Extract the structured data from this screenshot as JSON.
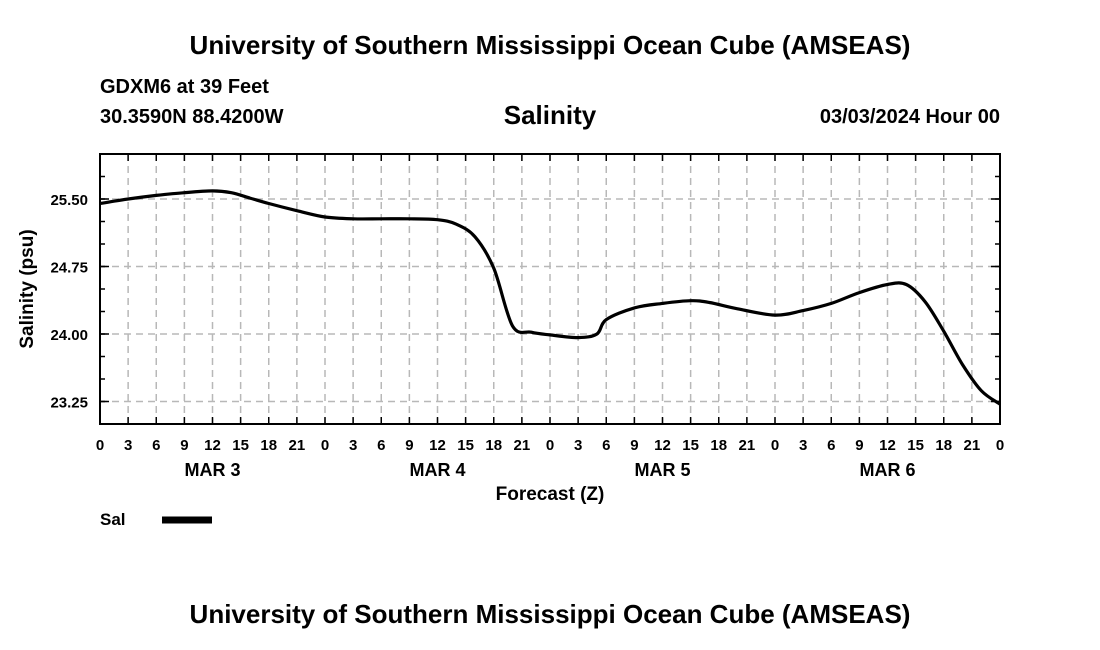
{
  "header": {
    "title": "University of Southern Mississippi Ocean Cube (AMSEAS)",
    "station": "GDXM6 at 39 Feet",
    "coords": "30.3590N  88.4200W",
    "chart_title": "Salinity",
    "datetime": "03/03/2024 Hour 00"
  },
  "footer": {
    "title": "University of Southern Mississippi Ocean Cube (AMSEAS)"
  },
  "chart_data": {
    "type": "line",
    "title": "Salinity",
    "xlabel": "Forecast (Z)",
    "ylabel": "Salinity (psu)",
    "xlim": [
      0,
      96
    ],
    "ylim": [
      23.0,
      26.0
    ],
    "grid": true,
    "x_tick_step_hours": 3,
    "x_tick_labels": [
      "0",
      "3",
      "6",
      "9",
      "12",
      "15",
      "18",
      "21",
      "0",
      "3",
      "6",
      "9",
      "12",
      "15",
      "18",
      "21",
      "0",
      "3",
      "6",
      "9",
      "12",
      "15",
      "18",
      "21",
      "0",
      "3",
      "6",
      "9",
      "12",
      "15",
      "18",
      "21",
      "0"
    ],
    "day_labels": [
      {
        "label": "MAR 3",
        "hour": 12
      },
      {
        "label": "MAR 4",
        "hour": 36
      },
      {
        "label": "MAR 5",
        "hour": 60
      },
      {
        "label": "MAR 6",
        "hour": 84
      }
    ],
    "y_ticks": [
      23.25,
      24.0,
      24.75,
      25.5
    ],
    "y_tick_labels": [
      "23.25",
      "24.00",
      "24.75",
      "25.50"
    ],
    "y_minor_step": 0.25,
    "legend": {
      "label": "Sal",
      "placement": "bottom-left"
    },
    "series": [
      {
        "name": "Sal",
        "color": "#000000",
        "x": [
          0,
          3,
          6,
          9,
          12,
          14,
          16,
          18,
          21,
          24,
          27,
          30,
          33,
          36,
          38,
          40,
          42,
          44,
          46,
          48,
          51,
          53,
          54,
          57,
          60,
          63,
          65,
          68,
          72,
          75,
          78,
          81,
          84,
          86,
          88,
          90,
          92,
          94,
          96
        ],
        "y": [
          25.45,
          25.5,
          25.54,
          25.57,
          25.59,
          25.57,
          25.51,
          25.45,
          25.37,
          25.3,
          25.28,
          25.28,
          25.28,
          25.27,
          25.22,
          25.08,
          24.73,
          24.09,
          24.02,
          23.99,
          23.96,
          24.0,
          24.16,
          24.29,
          24.34,
          24.37,
          24.35,
          24.28,
          24.21,
          24.26,
          24.34,
          24.46,
          24.55,
          24.55,
          24.36,
          24.03,
          23.66,
          23.37,
          23.22
        ]
      }
    ]
  }
}
